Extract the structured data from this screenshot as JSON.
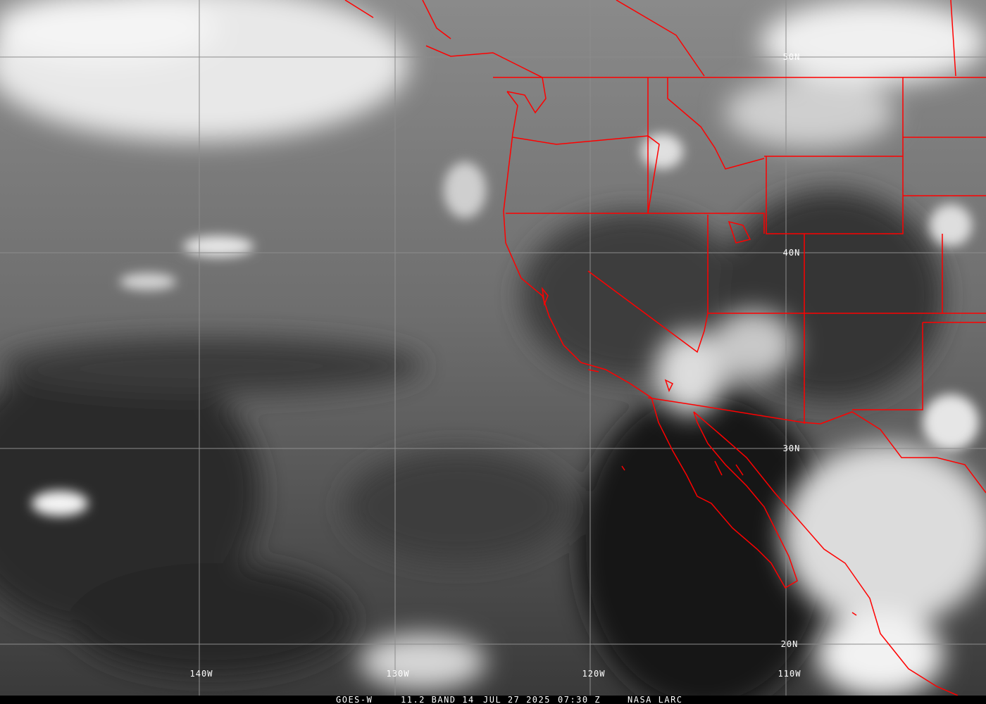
{
  "image": {
    "satellite": "GOES-W",
    "product": "11.2 BAND 14",
    "date": "JUL 27 2025",
    "time": "07:30 Z",
    "source": "NASA LARC",
    "border_color": "#ff0000",
    "grid_color": "#8c8c8c"
  },
  "grid": {
    "longitude_labels": [
      "140W",
      "130W",
      "120W",
      "110W"
    ],
    "latitude_labels": [
      "50N",
      "40N",
      "30N",
      "20N"
    ]
  }
}
